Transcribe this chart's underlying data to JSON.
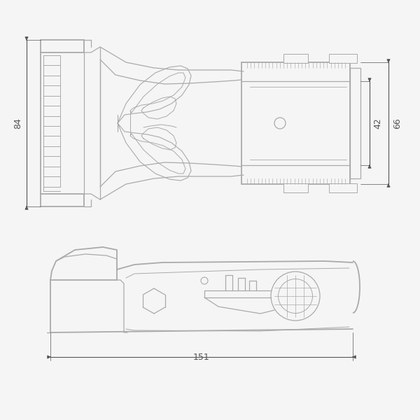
{
  "bg_color": "#f5f5f5",
  "lc": "#aaaaaa",
  "dc": "#555555",
  "lw": 0.9,
  "hlw": 1.3,
  "tlw": 0.5,
  "dim_84": "84",
  "dim_42": "42",
  "dim_66": "66",
  "dim_151": "151",
  "fs": 9
}
